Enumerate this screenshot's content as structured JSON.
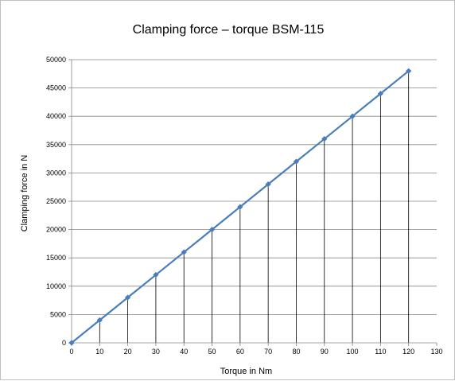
{
  "chart_data": {
    "type": "line",
    "title": "Clamping force – torque BSM-115",
    "xlabel": "Torque in Nm",
    "ylabel": "Clamping force in N",
    "xlim": [
      0,
      130
    ],
    "ylim": [
      0,
      50000
    ],
    "x_ticks": [
      0,
      10,
      20,
      30,
      40,
      50,
      60,
      70,
      80,
      90,
      100,
      110,
      120,
      130
    ],
    "y_ticks": [
      0,
      5000,
      10000,
      15000,
      20000,
      25000,
      30000,
      35000,
      40000,
      45000,
      50000
    ],
    "grid": "horizontal",
    "drop_lines": true,
    "markers": "diamond",
    "legend": "none",
    "series": [
      {
        "x": [
          0,
          10,
          20,
          30,
          40,
          50,
          60,
          70,
          80,
          90,
          100,
          110,
          120
        ],
        "y": [
          0,
          4000,
          8000,
          12000,
          16000,
          20000,
          24000,
          28000,
          32000,
          36000,
          40000,
          44000,
          48000
        ]
      }
    ],
    "colors": {
      "line": "#4a7ebb",
      "marker": "#4a7ebb",
      "grid": "#868686",
      "drop_line": "#000000",
      "axis": "#868686"
    }
  }
}
